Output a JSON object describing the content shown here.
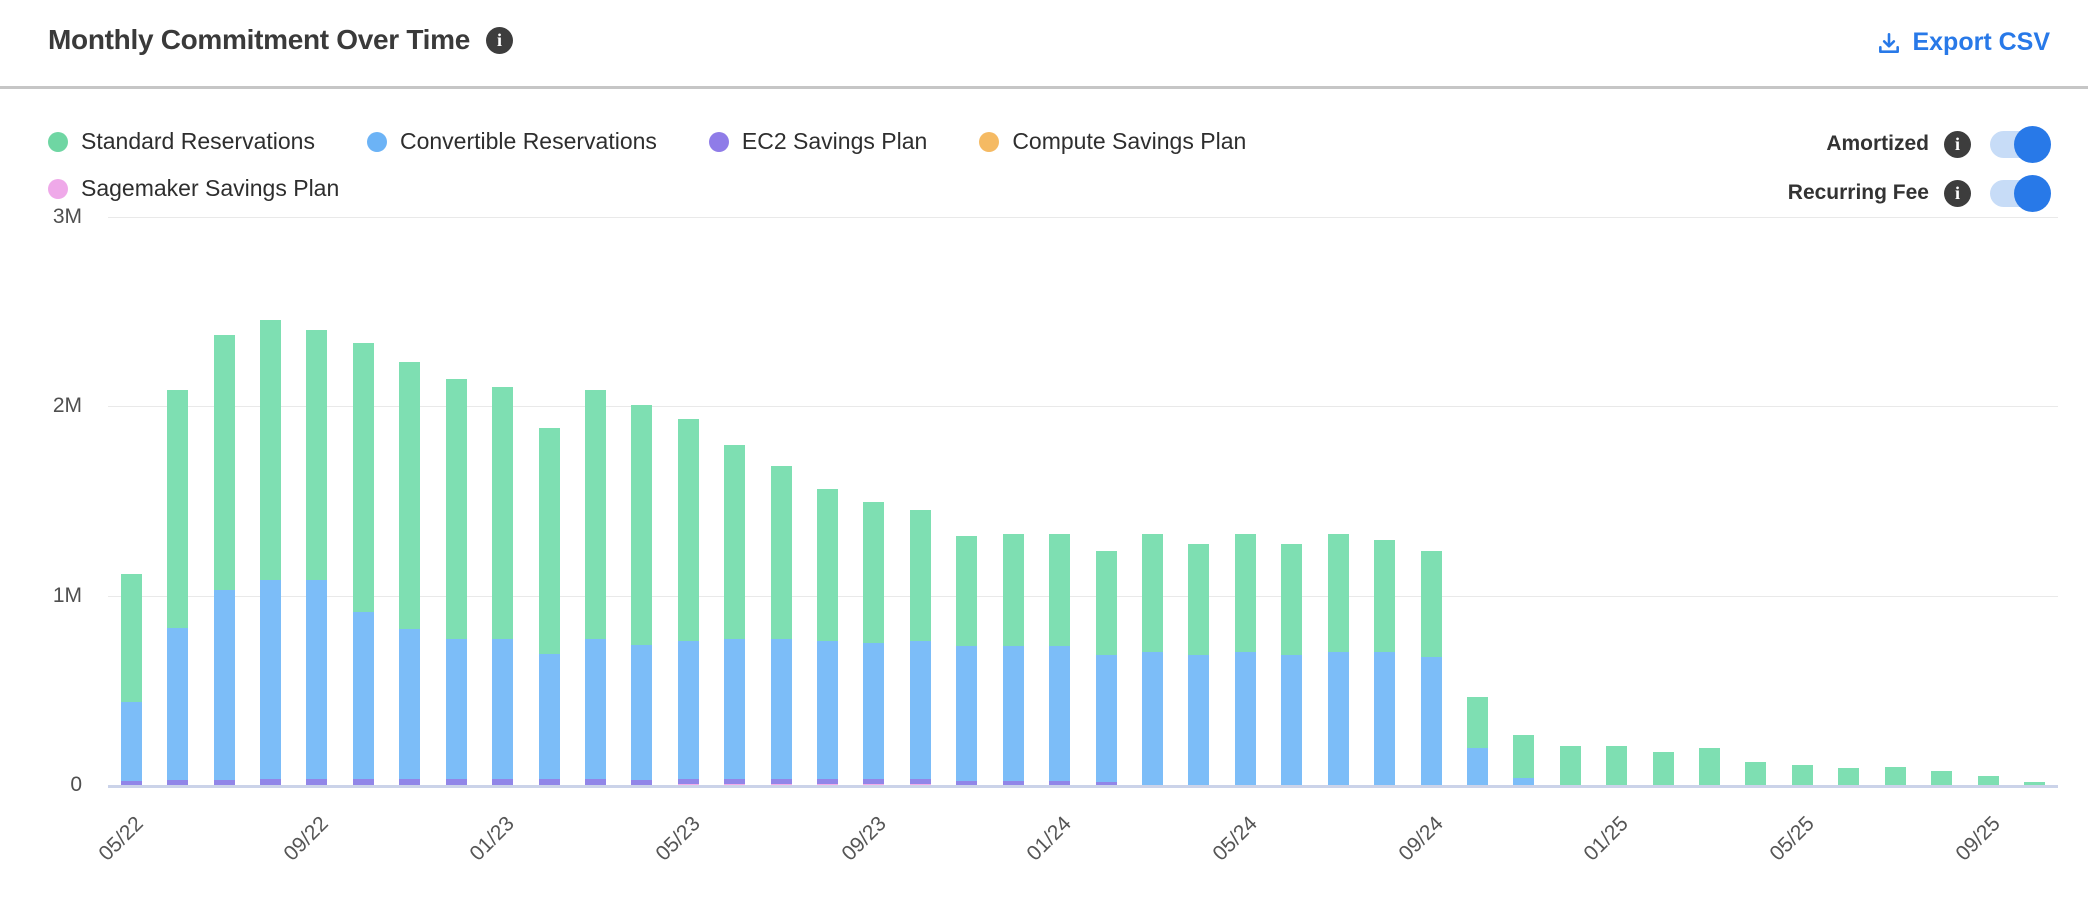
{
  "header": {
    "title": "Monthly Commitment Over Time",
    "export_label": "Export CSV"
  },
  "toggles": [
    {
      "label": "Amortized",
      "state": "on"
    },
    {
      "label": "Recurring Fee",
      "state": "on"
    }
  ],
  "colors": {
    "accent_blue": "#2879e8",
    "toggle_track": "#c7dcf7",
    "info_icon_bg": "#3d3d3d",
    "axis_line": "#cbd3e9",
    "gridline": "#e9e9e9"
  },
  "chart_data": {
    "type": "bar",
    "stacked": true,
    "title": "Monthly Commitment Over Time",
    "unit": "millions",
    "ylim": [
      0,
      3
    ],
    "y_ticks": {
      "values": [
        0,
        1,
        2,
        3
      ],
      "labels": [
        "0",
        "1M",
        "2M",
        "3M"
      ]
    },
    "x": [
      "05/22",
      "06/22",
      "07/22",
      "08/22",
      "09/22",
      "10/22",
      "11/22",
      "12/22",
      "01/23",
      "02/23",
      "03/23",
      "04/23",
      "05/23",
      "06/23",
      "07/23",
      "08/23",
      "09/23",
      "10/23",
      "11/23",
      "12/23",
      "01/24",
      "02/24",
      "03/24",
      "04/24",
      "05/24",
      "06/24",
      "07/24",
      "08/24",
      "09/24",
      "10/24",
      "11/24",
      "12/24",
      "01/25",
      "02/25",
      "03/25",
      "04/25",
      "05/25",
      "06/25",
      "07/25",
      "08/25",
      "09/25",
      "10/25"
    ],
    "x_tick_every": 4,
    "legend_position": "top-left",
    "grid": true,
    "series": [
      {
        "name": "Standard Reservations",
        "color": "#7edfb2",
        "legend_color": "#6fd6a3",
        "values": [
          0.675,
          1.257,
          1.347,
          1.372,
          1.322,
          1.422,
          1.412,
          1.372,
          1.332,
          1.192,
          1.312,
          1.267,
          1.175,
          1.025,
          0.915,
          0.805,
          0.745,
          0.695,
          0.582,
          0.592,
          0.592,
          0.55,
          0.62,
          0.59,
          0.62,
          0.59,
          0.62,
          0.59,
          0.56,
          0.27,
          0.23,
          0.21,
          0.21,
          0.18,
          0.2,
          0.125,
          0.11,
          0.095,
          0.1,
          0.08,
          0.055,
          0.02
        ]
      },
      {
        "name": "Convertible Reservations",
        "color": "#7cbdf8",
        "legend_color": "#6cb3f6",
        "values": [
          0.42,
          0.8,
          1.0,
          1.05,
          1.05,
          0.88,
          0.79,
          0.74,
          0.74,
          0.66,
          0.74,
          0.71,
          0.73,
          0.74,
          0.74,
          0.73,
          0.72,
          0.73,
          0.71,
          0.71,
          0.71,
          0.67,
          0.71,
          0.69,
          0.71,
          0.69,
          0.71,
          0.71,
          0.68,
          0.2,
          0.04,
          0,
          0,
          0,
          0,
          0,
          0,
          0,
          0,
          0,
          0,
          0
        ]
      },
      {
        "name": "EC2 Savings Plan",
        "color": "#9186e8",
        "legend_color": "#8f7ce8",
        "values": [
          0.02,
          0.025,
          0.025,
          0.03,
          0.03,
          0.03,
          0.03,
          0.03,
          0.03,
          0.03,
          0.03,
          0.025,
          0.025,
          0.025,
          0.025,
          0.025,
          0.025,
          0.025,
          0.02,
          0.02,
          0.02,
          0.015,
          0,
          0,
          0,
          0,
          0,
          0,
          0,
          0,
          0,
          0,
          0,
          0,
          0,
          0,
          0,
          0,
          0,
          0,
          0,
          0
        ]
      },
      {
        "name": "Compute Savings Plan",
        "color": "#f5ba63",
        "legend_color": "#f5ba63",
        "values": [
          0,
          0,
          0,
          0,
          0,
          0,
          0,
          0,
          0,
          0,
          0,
          0,
          0,
          0,
          0,
          0,
          0,
          0,
          0,
          0,
          0,
          0,
          0,
          0,
          0,
          0,
          0,
          0,
          0,
          0,
          0,
          0,
          0,
          0,
          0,
          0,
          0,
          0,
          0,
          0,
          0,
          0
        ]
      },
      {
        "name": "Sagemaker Savings Plan",
        "color": "#f2abe9",
        "legend_color": "#efa9e9",
        "values": [
          0.005,
          0.008,
          0.008,
          0.008,
          0.008,
          0.008,
          0.008,
          0.008,
          0.008,
          0.008,
          0.008,
          0.008,
          0.01,
          0.01,
          0.01,
          0.01,
          0.01,
          0.01,
          0.008,
          0.008,
          0.008,
          0.005,
          0,
          0,
          0,
          0,
          0,
          0,
          0,
          0,
          0,
          0,
          0,
          0,
          0,
          0,
          0,
          0,
          0,
          0,
          0,
          0
        ]
      }
    ],
    "stack_order_bottom_to_top": [
      "Sagemaker Savings Plan",
      "Compute Savings Plan",
      "EC2 Savings Plan",
      "Convertible Reservations",
      "Standard Reservations"
    ]
  }
}
